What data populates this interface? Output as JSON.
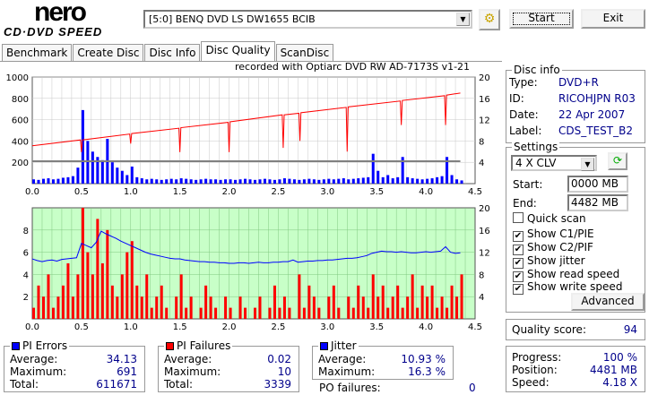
{
  "app": {
    "logo_top": "nero",
    "logo_bottom": "CD·DVD SPEED"
  },
  "toolbar": {
    "drive": "[5:0]  BENQ DVD LS DW1655 BCIB",
    "start": "Start",
    "exit": "Exit"
  },
  "tabs": [
    "Benchmark",
    "Create Disc",
    "Disc Info",
    "Disc Quality",
    "ScanDisc"
  ],
  "active_tab": "Disc Quality",
  "recorded_with": "recorded with Optiarc DVD RW AD-7173S  v1-21",
  "disc_info": {
    "title": "Disc info",
    "type_label": "Type:",
    "type": "DVD+R",
    "id_label": "ID:",
    "id": "RICOHJPN R03",
    "date_label": "Date:",
    "date": "22 Apr 2007",
    "label_label": "Label:",
    "label": "CDS_TEST_B2"
  },
  "settings": {
    "title": "Settings",
    "speed": "4 X CLV",
    "start_label": "Start:",
    "start": "0000 MB",
    "end_label": "End:",
    "end": "4482 MB",
    "quick_scan": "Quick scan",
    "show_c1": "Show C1/PIE",
    "show_c2": "Show C2/PIF",
    "show_jitter": "Show jitter",
    "show_read": "Show read speed",
    "show_write": "Show write speed",
    "advanced": "Advanced"
  },
  "checks": {
    "quick_scan": false,
    "show_c1": true,
    "show_c2": true,
    "show_jitter": true,
    "show_read": true,
    "show_write": true
  },
  "quality": {
    "label": "Quality score:",
    "value": "94"
  },
  "progress": {
    "progress_label": "Progress:",
    "progress": "100 %",
    "position_label": "Position:",
    "position": "4481 MB",
    "speed_label": "Speed:",
    "speed": "4.18 X"
  },
  "pi_errors": {
    "title": "PI Errors",
    "avg_label": "Average:",
    "avg": "34.13",
    "max_label": "Maximum:",
    "max": "691",
    "total_label": "Total:",
    "total": "611671"
  },
  "pi_failures": {
    "title": "PI Failures",
    "avg_label": "Average:",
    "avg": "0.02",
    "max_label": "Maximum:",
    "max": "10",
    "total_label": "Total:",
    "total": "3339"
  },
  "jitter": {
    "title": "Jitter",
    "avg_label": "Average:",
    "avg": "10.93 %",
    "max_label": "Maximum:",
    "max": "16.3 %",
    "po_label": "PO failures:",
    "po": "0"
  },
  "colors": {
    "pie": "#0000ff",
    "pif": "#ff0000",
    "jitter": "#0000ff",
    "read": "#ff0000",
    "write": "#808080",
    "bottom_bg": "#c8ffc8"
  },
  "chart_data": [
    {
      "type": "bar",
      "name": "PI Errors / speed",
      "xlim": [
        0,
        4.5
      ],
      "ylim": [
        0,
        1000
      ],
      "y2lim": [
        0,
        20
      ],
      "xticks": [
        "0.0",
        "0.5",
        "1.0",
        "1.5",
        "2.0",
        "2.5",
        "3.0",
        "3.5",
        "4.0",
        "4.5"
      ],
      "yticks": [
        "200",
        "400",
        "600",
        "800",
        "1000"
      ],
      "y2ticks": [
        "4",
        "8",
        "12",
        "16",
        "20"
      ],
      "x_step": 0.05,
      "pie": [
        40,
        35,
        45,
        50,
        40,
        45,
        55,
        60,
        70,
        150,
        690,
        400,
        300,
        250,
        220,
        420,
        200,
        150,
        120,
        80,
        160,
        60,
        50,
        40,
        45,
        40,
        35,
        40,
        45,
        40,
        50,
        45,
        40,
        35,
        40,
        45,
        40,
        40,
        35,
        40,
        40,
        35,
        40,
        45,
        40,
        35,
        40,
        45,
        40,
        35,
        40,
        50,
        45,
        40,
        35,
        40,
        45,
        40,
        35,
        40,
        45,
        40,
        45,
        50,
        40,
        45,
        50,
        55,
        60,
        280,
        120,
        60,
        80,
        50,
        60,
        250,
        60,
        50,
        45,
        40,
        45,
        50,
        60,
        70,
        250,
        80,
        40,
        30
      ],
      "read_speed": [
        [
          0,
          7.1
        ],
        [
          0.49,
          8.2
        ],
        [
          0.5,
          5.9
        ],
        [
          0.51,
          8.2
        ],
        [
          0.99,
          9.3
        ],
        [
          1.0,
          7.5
        ],
        [
          1.01,
          9.4
        ],
        [
          1.49,
          10.4
        ],
        [
          1.5,
          5.9
        ],
        [
          1.51,
          10.5
        ],
        [
          1.99,
          11.5
        ],
        [
          2.0,
          5.9
        ],
        [
          2.01,
          11.6
        ],
        [
          2.54,
          12.9
        ],
        [
          2.55,
          6.7
        ],
        [
          2.56,
          12.9
        ],
        [
          2.71,
          13.2
        ],
        [
          2.72,
          8.0
        ],
        [
          2.73,
          13.3
        ],
        [
          3.19,
          14.3
        ],
        [
          3.2,
          6.0
        ],
        [
          3.21,
          14.4
        ],
        [
          3.74,
          15.5
        ],
        [
          3.75,
          11.0
        ],
        [
          3.76,
          15.6
        ],
        [
          4.19,
          16.5
        ],
        [
          4.2,
          11.0
        ],
        [
          4.21,
          16.6
        ],
        [
          4.35,
          17.0
        ]
      ],
      "write_speed": [
        [
          0,
          4.2
        ],
        [
          4.35,
          4.2
        ]
      ]
    },
    {
      "type": "bar",
      "name": "PI Failures / jitter",
      "xlim": [
        0,
        4.5
      ],
      "ylim": [
        0,
        10
      ],
      "y2lim": [
        0,
        20
      ],
      "xticks": [
        "0.0",
        "0.5",
        "1.0",
        "1.5",
        "2.0",
        "2.5",
        "3.0",
        "3.5",
        "4.0",
        "4.5"
      ],
      "yticks": [
        "2",
        "4",
        "6",
        "8"
      ],
      "y2ticks": [
        "4",
        "8",
        "12",
        "16",
        "20"
      ],
      "x_step": 0.05,
      "pif": [
        1,
        3,
        2,
        4,
        1,
        2,
        3,
        5,
        2,
        4,
        10,
        6,
        4,
        9,
        5,
        8,
        3,
        2,
        4,
        6,
        7,
        3,
        2,
        4,
        1,
        2,
        3,
        1,
        0,
        2,
        4,
        1,
        2,
        0,
        1,
        3,
        2,
        1,
        0,
        2,
        1,
        0,
        2,
        1,
        0,
        1,
        2,
        0,
        1,
        3,
        1,
        2,
        1,
        0,
        4,
        1,
        3,
        2,
        1,
        0,
        2,
        3,
        1,
        0,
        2,
        1,
        3,
        2,
        1,
        4,
        2,
        3,
        1,
        2,
        3,
        1,
        2,
        4,
        1,
        3,
        2,
        3,
        1,
        2,
        1,
        3,
        2,
        4
      ],
      "jitter": [
        10.8,
        10.5,
        10.3,
        10.5,
        10.6,
        10.4,
        10.7,
        10.8,
        10.9,
        11.0,
        13.6,
        13.2,
        12.8,
        13.8,
        15.8,
        15.3,
        14.9,
        14.5,
        14.0,
        13.6,
        13.2,
        12.8,
        12.4,
        12.0,
        11.7,
        11.5,
        11.3,
        11.1,
        10.9,
        10.8,
        10.8,
        10.6,
        10.5,
        10.4,
        10.3,
        10.3,
        10.2,
        10.2,
        10.1,
        10.1,
        10.0,
        10.0,
        10.1,
        10.1,
        10.0,
        10.1,
        10.2,
        10.1,
        10.1,
        10.2,
        10.2,
        10.3,
        10.3,
        10.6,
        10.2,
        10.3,
        10.4,
        10.4,
        10.5,
        10.5,
        10.6,
        10.6,
        10.7,
        10.8,
        10.9,
        10.9,
        11.0,
        11.2,
        11.4,
        11.8,
        12.0,
        12.2,
        12.1,
        12.1,
        12.0,
        12.1,
        12.0,
        11.9,
        11.9,
        12.0,
        12.1,
        12.0,
        12.1,
        12.2,
        13.0,
        12.0,
        11.8,
        11.9
      ]
    }
  ]
}
